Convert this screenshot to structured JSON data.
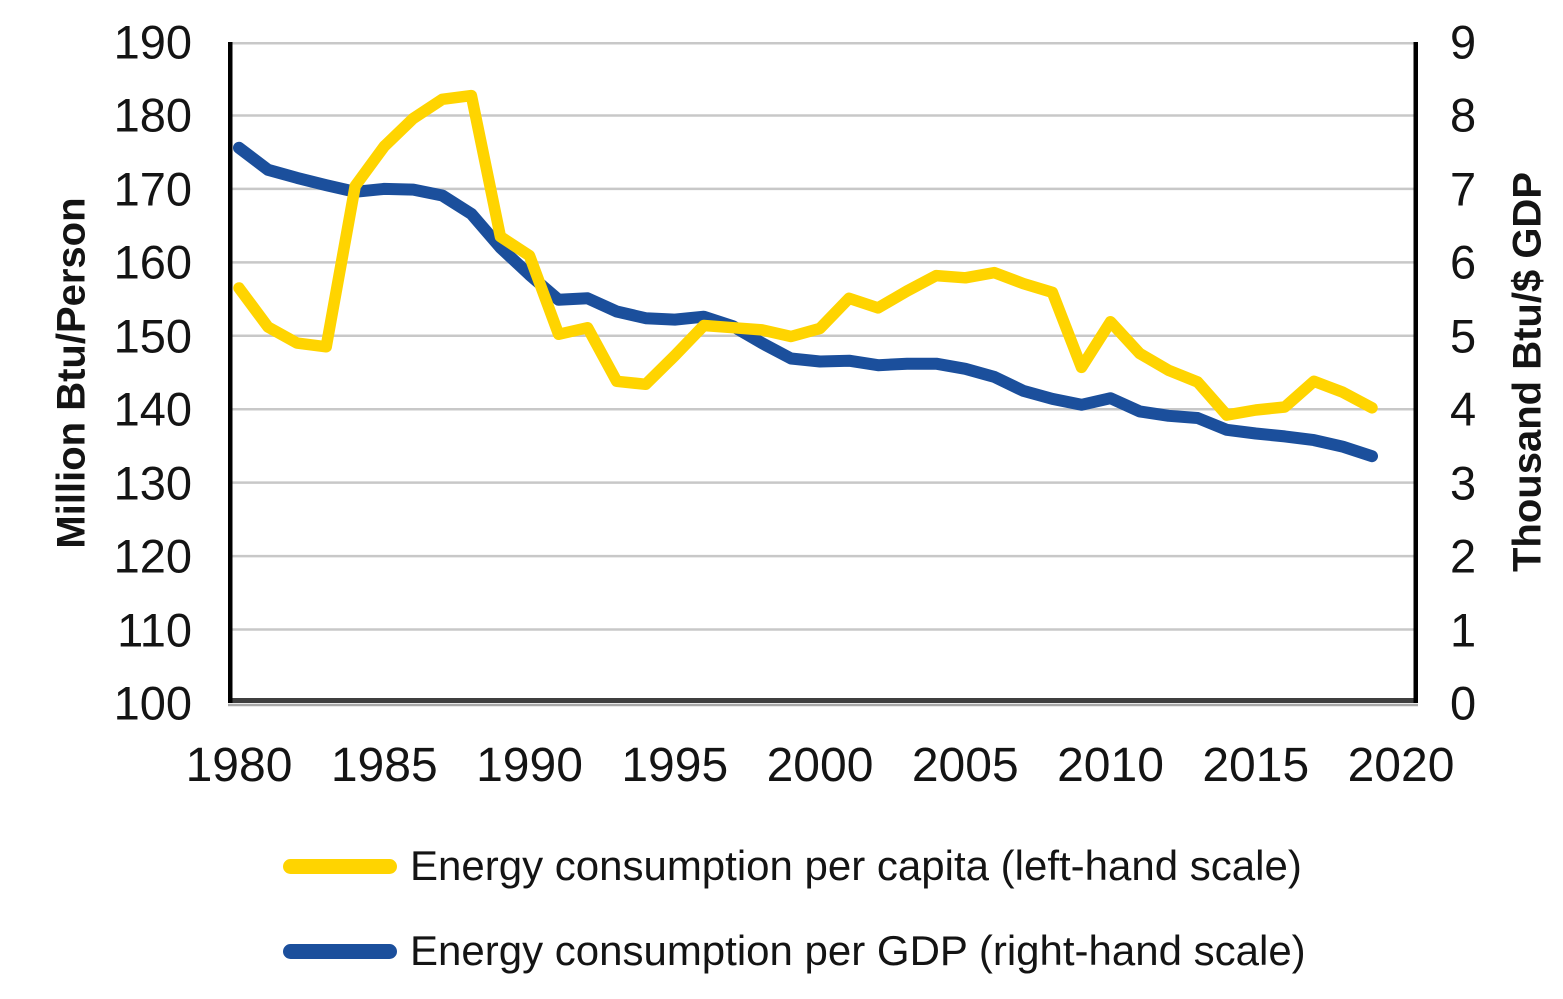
{
  "figure": {
    "background": "#FFFFFF",
    "text_color": "#141414",
    "gridline_color": "#C8C8C8",
    "axis_line_color": "#000000",
    "baseline_color": "#3F3F3F",
    "baseline_shadow_color": "#A8A8A8"
  },
  "chart_data": {
    "type": "line",
    "title": "",
    "grid": "horizontal",
    "legend_position": "bottom-left",
    "x": [
      1980,
      1981,
      1982,
      1983,
      1984,
      1985,
      1986,
      1987,
      1988,
      1989,
      1990,
      1991,
      1992,
      1993,
      1994,
      1995,
      1996,
      1997,
      1998,
      1999,
      2000,
      2001,
      2002,
      2003,
      2004,
      2005,
      2006,
      2007,
      2008,
      2009,
      2010,
      2011,
      2012,
      2013,
      2014,
      2015,
      2016,
      2017,
      2018,
      2019
    ],
    "series": [
      {
        "name": "Energy consumption per capita (left-hand scale)",
        "axis": "left",
        "color": "#FFD400",
        "stroke_width": 11.5,
        "values": [
          156.5,
          151.2,
          149.0,
          148.5,
          170.4,
          175.8,
          179.6,
          182.2,
          182.7,
          163.5,
          160.9,
          150.2,
          151.1,
          143.8,
          143.4,
          147.3,
          151.4,
          151.1,
          150.8,
          149.9,
          151.0,
          155.1,
          153.8,
          156.1,
          158.2,
          157.9,
          158.6,
          157.1,
          155.9,
          145.7,
          151.9,
          147.6,
          145.3,
          143.7,
          139.2,
          139.9,
          140.3,
          143.8,
          142.3,
          140.2
        ]
      },
      {
        "name": "Energy consumption per GDP (right-hand scale)",
        "axis": "right",
        "color": "#1B4F9C",
        "stroke_width": 12,
        "values": [
          7.56,
          7.26,
          7.15,
          7.05,
          6.96,
          7.0,
          6.99,
          6.91,
          6.66,
          6.2,
          5.83,
          5.49,
          5.51,
          5.33,
          5.24,
          5.22,
          5.26,
          5.13,
          4.9,
          4.69,
          4.65,
          4.66,
          4.6,
          4.62,
          4.62,
          4.55,
          4.44,
          4.25,
          4.14,
          4.06,
          4.15,
          3.97,
          3.91,
          3.88,
          3.72,
          3.67,
          3.63,
          3.58,
          3.49,
          3.36
        ]
      }
    ],
    "left_axis": {
      "label": "Million Btu/Person",
      "min": 100,
      "max": 190,
      "ticks": [
        190,
        180,
        170,
        160,
        150,
        140,
        130,
        120,
        110,
        100
      ]
    },
    "right_axis": {
      "label": "Thousand Btu/$ GDP",
      "min": 0,
      "max": 9,
      "ticks": [
        9,
        8,
        7,
        6,
        5,
        4,
        3,
        2,
        1,
        0
      ]
    },
    "x_axis": {
      "ticks": [
        1980,
        1985,
        1990,
        1995,
        2000,
        2005,
        2010,
        2015,
        2020
      ]
    }
  }
}
